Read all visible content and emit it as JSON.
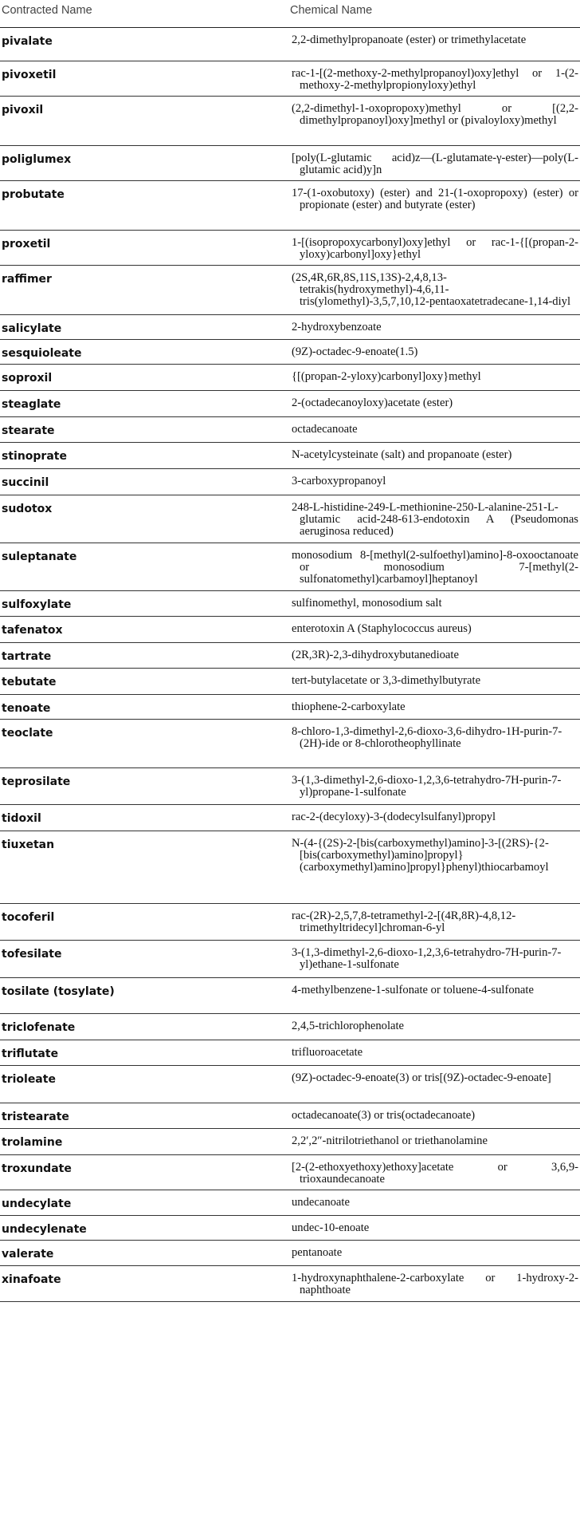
{
  "table": {
    "header": {
      "contracted": "Contracted Name",
      "chemical": "Chemical Name"
    },
    "rows": [
      {
        "name": "pivalate",
        "def": "2,2-dimethylpropanoate (ester) or trimethylacetate"
      },
      {
        "name": "pivoxetil",
        "def": "rac-1-[(2-methoxy-2-methylpropanoyl)oxy]ethyl or 1-(2-methoxy-2-methylpropionyloxy)ethyl"
      },
      {
        "name": "pivoxil",
        "def": "(2,2-dimethyl-1-oxopropoxy)methyl or [(2,2-dimethylpropanoyl)oxy]methyl or (pivaloyloxy)methyl"
      },
      {
        "name": "poliglumex",
        "def": "[poly(L-glutamic acid)z—(L-glutamate-γ-ester)—poly(L-glutamic acid)y]n"
      },
      {
        "name": "probutate",
        "def": "17-(1-oxobutoxy) (ester) and 21-(1-oxopropoxy) (ester) or propionate (ester) and butyrate (ester)"
      },
      {
        "name": "proxetil",
        "def": "1-[(isopropoxycarbonyl)oxy]ethyl or rac-1-{[(propan-2-yloxy)carbonyl]oxy}ethyl"
      },
      {
        "name": "raffimer",
        "def": "(2S,4R,6R,8S,11S,13S)-2,4,8,13-tetrakis(hydroxymethyl)-4,6,11-tris(ylomethyl)-3,5,7,10,12-pentaoxatetradecane-1,14-diyl"
      },
      {
        "name": "salicylate",
        "def": "2-hydroxybenzoate"
      },
      {
        "name": "sesquioleate",
        "def": "(9Z)-octadec-9-enoate(1.5)"
      },
      {
        "name": "soproxil",
        "def": "{[(propan-2-yloxy)carbonyl]oxy}methyl"
      },
      {
        "name": "steaglate",
        "def": "2-(octadecanoyloxy)acetate (ester)"
      },
      {
        "name": "stearate",
        "def": "octadecanoate"
      },
      {
        "name": "stinoprate",
        "def": "N-acetylcysteinate (salt) and propanoate (ester)"
      },
      {
        "name": "succinil",
        "def": "3-carboxypropanoyl"
      },
      {
        "name": "sudotox",
        "def": "248-L-histidine-249-L-methionine-250-L-alanine-251-L-glutamic acid-248-613-endotoxin A (Pseudomonas aeruginosa reduced)"
      },
      {
        "name": "suleptanate",
        "def": "monosodium 8-[methyl(2-sulfoethyl)amino]-8-oxooctanoate or monosodium 7-[methyl(2-sulfonatomethyl)carbamoyl]heptanoyl"
      },
      {
        "name": "sulfoxylate",
        "def": "sulfinomethyl, monosodium salt"
      },
      {
        "name": "tafenatox",
        "def": "enterotoxin A (Staphylococcus aureus)"
      },
      {
        "name": "tartrate",
        "def": "(2R,3R)-2,3-dihydroxybutanedioate"
      },
      {
        "name": "tebutate",
        "def": "tert-butylacetate or 3,3-dimethylbutyrate"
      },
      {
        "name": "tenoate",
        "def": "thiophene-2-carboxylate"
      },
      {
        "name": "teoclate",
        "def": "8-chloro-1,3-dimethyl-2,6-dioxo-3,6-dihydro-1H-purin-7-(2H)-ide or 8-chlorotheophyllinate"
      },
      {
        "name": "teprosilate",
        "def": "3-(1,3-dimethyl-2,6-dioxo-1,2,3,6-tetrahydro-7H-purin-7-yl)propane-1-sulfonate"
      },
      {
        "name": "tidoxil",
        "def": "rac-2-(decyloxy)-3-(dodecylsulfanyl)propyl"
      },
      {
        "name": "tiuxetan",
        "def": "N-(4-{(2S)-2-[bis(carboxymethyl)amino]-3-[(2RS)-{2-[bis(carboxymethyl)amino]propyl}(carboxymethyl)amino]propyl}phenyl)thiocarbamoyl"
      },
      {
        "name": "tocoferil",
        "def": "rac-(2R)-2,5,7,8-tetramethyl-2-[(4R,8R)-4,8,12-trimethyltridecyl]chroman-6-yl"
      },
      {
        "name": "tofesilate",
        "def": "3-(1,3-dimethyl-2,6-dioxo-1,2,3,6-tetrahydro-7H-purin-7-yl)ethane-1-sulfonate"
      },
      {
        "name": "tosilate (tosylate)",
        "def": "4-methylbenzene-1-sulfonate or toluene-4-sulfonate"
      },
      {
        "name": "triclofenate",
        "def": "2,4,5-trichlorophenolate"
      },
      {
        "name": "triflutate",
        "def": "trifluoroacetate"
      },
      {
        "name": "trioleate",
        "def": "(9Z)-octadec-9-enoate(3) or tris[(9Z)-octadec-9-enoate]"
      },
      {
        "name": "tristearate",
        "def": "octadecanoate(3) or tris(octadecanoate)"
      },
      {
        "name": "trolamine",
        "def": "2,2′,2″-nitrilotriethanol or triethanolamine"
      },
      {
        "name": "troxundate",
        "def": "[2-(2-ethoxyethoxy)ethoxy]acetate or 3,6,9-trioxaundecanoate"
      },
      {
        "name": "undecylate",
        "def": "undecanoate"
      },
      {
        "name": "undecylenate",
        "def": "undec-10-enoate"
      },
      {
        "name": "valerate",
        "def": "pentanoate"
      },
      {
        "name": "xinafoate",
        "def": "1-hydroxynaphthalene-2-carboxylate or 1-hydroxy-2-naphthoate"
      }
    ]
  }
}
